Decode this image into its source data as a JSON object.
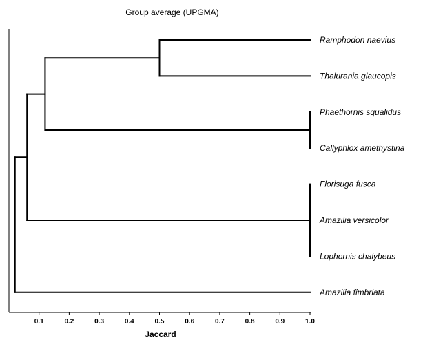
{
  "chart_data": {
    "type": "dendrogram",
    "title": "Group average (UPGMA)",
    "xlabel": "Jaccard",
    "xlim": [
      0,
      1.0
    ],
    "x_ticks": [
      "0.1",
      "0.2",
      "0.3",
      "0.4",
      "0.5",
      "0.6",
      "0.7",
      "0.8",
      "0.9",
      "1.0"
    ],
    "leaves": [
      "Ramphodon naevius",
      "Thalurania glaucopis",
      "Phaethornis squalidus",
      "Callyphlox amethystina",
      "Florisuga fusca",
      "Amazilia versicolor",
      "Lophornis chalybeus",
      "Amazilia fimbriata"
    ],
    "merges": [
      {
        "members": [
          "Phaethornis squalidus",
          "Callyphlox amethystina"
        ],
        "similarity": 1.0
      },
      {
        "members": [
          "Florisuga fusca",
          "Amazilia versicolor",
          "Lophornis chalybeus"
        ],
        "similarity": 1.0
      },
      {
        "members": [
          "Ramphodon naevius",
          "Thalurania glaucopis"
        ],
        "similarity": 0.5
      },
      {
        "members": [
          "Ramphodon naevius",
          "Thalurania glaucopis",
          "Phaethornis squalidus",
          "Callyphlox amethystina"
        ],
        "similarity": 0.12
      },
      {
        "members": [
          "Ramphodon naevius",
          "Thalurania glaucopis",
          "Phaethornis squalidus",
          "Callyphlox amethystina",
          "Florisuga fusca",
          "Amazilia versicolor",
          "Lophornis chalybeus"
        ],
        "similarity": 0.06
      },
      {
        "members": [
          "Ramphodon naevius",
          "Thalurania glaucopis",
          "Phaethornis squalidus",
          "Callyphlox amethystina",
          "Florisuga fusca",
          "Amazilia versicolor",
          "Lophornis chalybeus",
          "Amazilia fimbriata"
        ],
        "similarity": 0.02
      }
    ],
    "grid": false
  }
}
